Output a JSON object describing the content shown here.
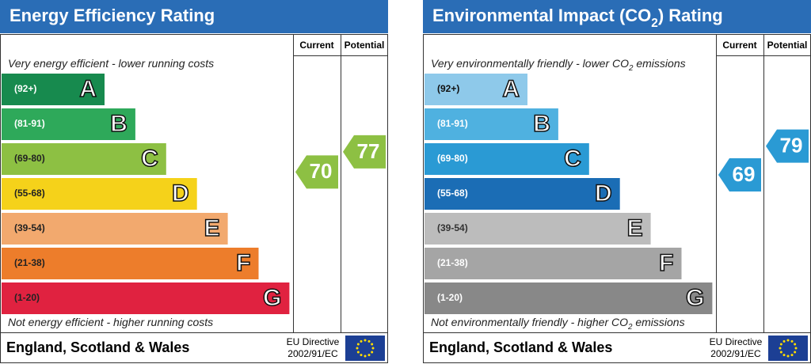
{
  "panels": [
    {
      "title": [
        "Energy Efficiency Rating"
      ],
      "current_header": "Current",
      "potential_header": "Potential",
      "top_note": [
        "Very energy efficient - lower running costs"
      ],
      "bottom_note": [
        "Not energy efficient - higher running costs"
      ],
      "bands": [
        {
          "range": "(92+)",
          "letter": "A",
          "color": "#178a4e",
          "label_color": "#ffffff"
        },
        {
          "range": "(81-91)",
          "letter": "B",
          "color": "#2ea95a",
          "label_color": "#ffffff"
        },
        {
          "range": "(69-80)",
          "letter": "C",
          "color": "#8dc043",
          "label_color": "#222222"
        },
        {
          "range": "(55-68)",
          "letter": "D",
          "color": "#f5d21a",
          "label_color": "#222222"
        },
        {
          "range": "(39-54)",
          "letter": "E",
          "color": "#f2a96e",
          "label_color": "#222222"
        },
        {
          "range": "(21-38)",
          "letter": "F",
          "color": "#ed7d2b",
          "label_color": "#222222"
        },
        {
          "range": "(1-20)",
          "letter": "G",
          "color": "#e02240",
          "label_color": "#222222"
        }
      ],
      "current": {
        "value": 70,
        "color": "#8dc043"
      },
      "potential": {
        "value": 77,
        "color": "#8dc043"
      },
      "footer": "England, Scotland & Wales",
      "directive": [
        "EU Directive",
        "2002/91/EC"
      ]
    },
    {
      "title": [
        "Environmental Impact (CO",
        "2",
        ") Rating"
      ],
      "current_header": "Current",
      "potential_header": "Potential",
      "top_note": [
        "Very environmentally friendly - lower CO",
        "2",
        " emissions"
      ],
      "bottom_note": [
        "Not environmentally friendly - higher CO",
        "2",
        " emissions"
      ],
      "bands": [
        {
          "range": "(92+)",
          "letter": "A",
          "color": "#8ec9ea",
          "label_color": "#111111"
        },
        {
          "range": "(81-91)",
          "letter": "B",
          "color": "#4fb1e0",
          "label_color": "#ffffff"
        },
        {
          "range": "(69-80)",
          "letter": "C",
          "color": "#2a9ad4",
          "label_color": "#ffffff"
        },
        {
          "range": "(55-68)",
          "letter": "D",
          "color": "#1b6db5",
          "label_color": "#ffffff"
        },
        {
          "range": "(39-54)",
          "letter": "E",
          "color": "#bcbcbc",
          "label_color": "#333333"
        },
        {
          "range": "(21-38)",
          "letter": "F",
          "color": "#a5a5a5",
          "label_color": "#ffffff"
        },
        {
          "range": "(1-20)",
          "letter": "G",
          "color": "#888888",
          "label_color": "#ffffff"
        }
      ],
      "current": {
        "value": 69,
        "color": "#2a9ad4"
      },
      "potential": {
        "value": 79,
        "color": "#2a9ad4"
      },
      "footer": "England, Scotland & Wales",
      "directive": [
        "EU Directive",
        "2002/91/EC"
      ]
    }
  ]
}
